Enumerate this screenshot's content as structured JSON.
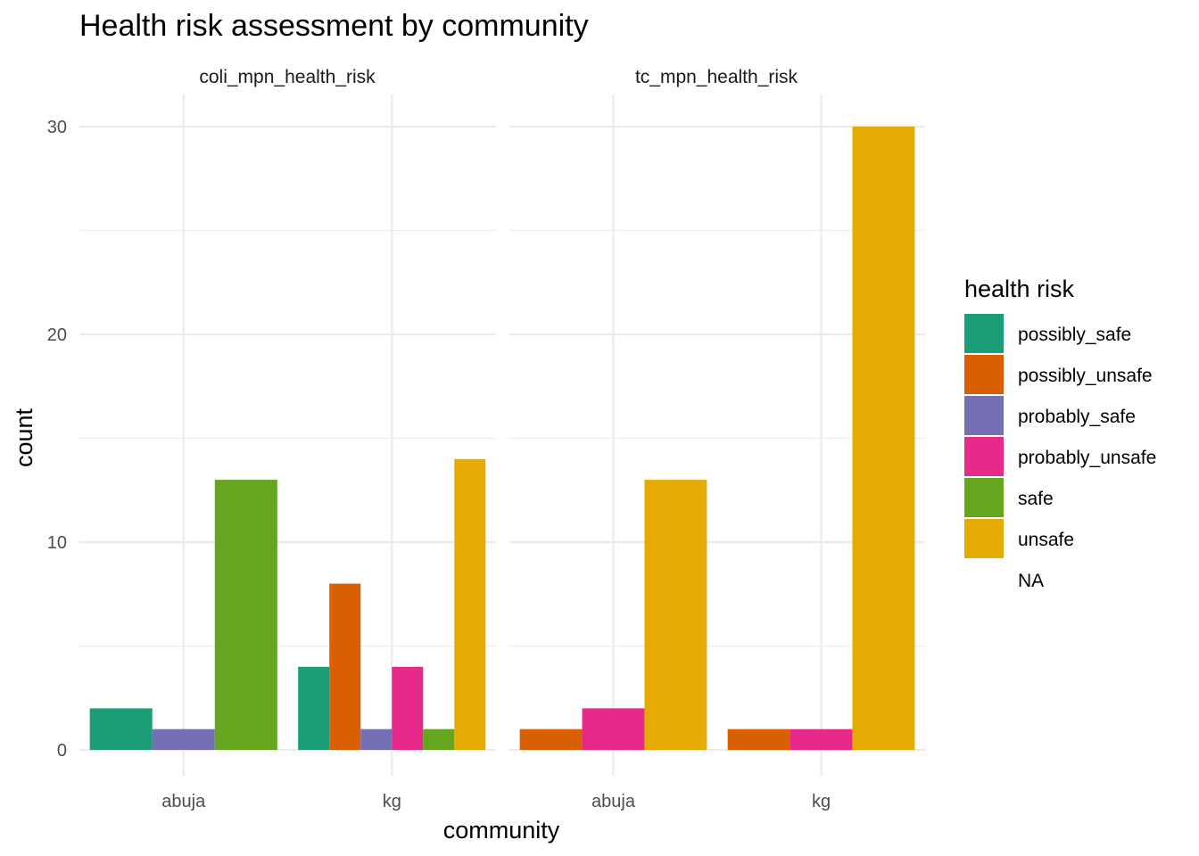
{
  "chart_data": {
    "type": "bar",
    "title": "Health risk assessment by community",
    "xlabel": "community",
    "ylabel": "count",
    "ylim": [
      0,
      30
    ],
    "yticks": [
      0,
      10,
      20,
      30
    ],
    "categories": [
      "abuja",
      "kg"
    ],
    "legend": {
      "title": "health risk",
      "position": "right",
      "entries": [
        {
          "name": "possibly_safe",
          "color": "#1B9E77"
        },
        {
          "name": "possibly_unsafe",
          "color": "#D95F02"
        },
        {
          "name": "probably_safe",
          "color": "#7570B3"
        },
        {
          "name": "probably_unsafe",
          "color": "#E7298A"
        },
        {
          "name": "safe",
          "color": "#66A61E"
        },
        {
          "name": "unsafe",
          "color": "#E6AB02"
        },
        {
          "name": "NA",
          "color": ""
        }
      ]
    },
    "panels": [
      {
        "name": "coli_mpn_health_risk",
        "groups": [
          {
            "category": "abuja",
            "bars": [
              {
                "risk": "possibly_safe",
                "value": 2
              },
              {
                "risk": "probably_safe",
                "value": 1
              },
              {
                "risk": "safe",
                "value": 13
              }
            ]
          },
          {
            "category": "kg",
            "bars": [
              {
                "risk": "possibly_safe",
                "value": 4
              },
              {
                "risk": "possibly_unsafe",
                "value": 8
              },
              {
                "risk": "probably_safe",
                "value": 1
              },
              {
                "risk": "probably_unsafe",
                "value": 4
              },
              {
                "risk": "safe",
                "value": 1
              },
              {
                "risk": "unsafe",
                "value": 14
              }
            ]
          }
        ]
      },
      {
        "name": "tc_mpn_health_risk",
        "groups": [
          {
            "category": "abuja",
            "bars": [
              {
                "risk": "possibly_unsafe",
                "value": 1
              },
              {
                "risk": "probably_unsafe",
                "value": 2
              },
              {
                "risk": "unsafe",
                "value": 13
              }
            ]
          },
          {
            "category": "kg",
            "bars": [
              {
                "risk": "possibly_unsafe",
                "value": 1
              },
              {
                "risk": "probably_unsafe",
                "value": 1
              },
              {
                "risk": "unsafe",
                "value": 30
              }
            ]
          }
        ]
      }
    ]
  }
}
